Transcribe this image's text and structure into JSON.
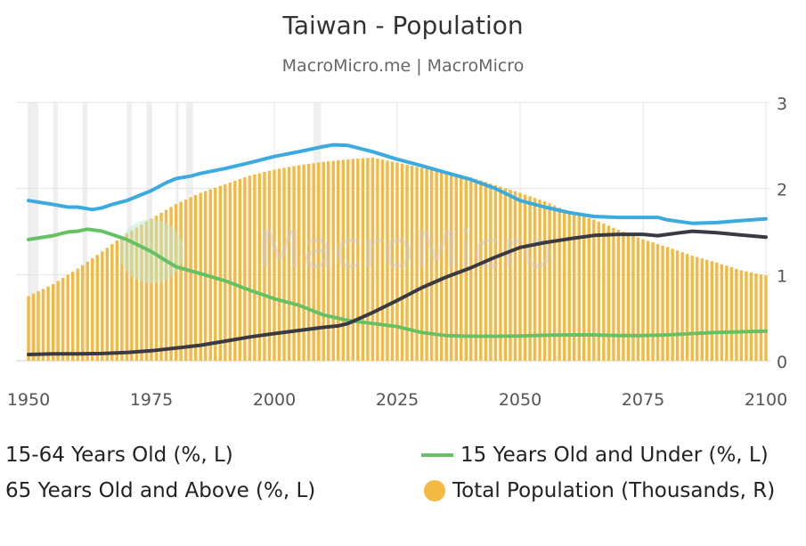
{
  "title": "Taiwan - Population",
  "subtitle": "MacroMicro.me | MacroMicro",
  "watermark": "MacroMicro",
  "chart_data": {
    "type": "bar+line",
    "title": "Taiwan - Population",
    "subtitle": "MacroMicro.me | MacroMicro",
    "x_ticks": [
      1950,
      1975,
      2000,
      2025,
      2050,
      2075,
      2100
    ],
    "x_range": [
      1950,
      2100
    ],
    "left_axis_range": [
      0,
      75
    ],
    "right_axis_range": [
      0,
      30000
    ],
    "right_tick_labels": [
      "0",
      "1",
      "2",
      "3"
    ],
    "grid": true,
    "legend_position": "bottom",
    "series": [
      {
        "name": "15-64 Years Old (%, L)",
        "type": "line",
        "color": "#3aaadf",
        "axis": "left",
        "points": [
          [
            1950,
            46.5
          ],
          [
            1955,
            45.4
          ],
          [
            1958,
            44.6
          ],
          [
            1960,
            44.6
          ],
          [
            1963,
            43.9
          ],
          [
            1965,
            44.4
          ],
          [
            1967,
            45.4
          ],
          [
            1970,
            46.5
          ],
          [
            1975,
            49.4
          ],
          [
            1978,
            51.7
          ],
          [
            1980,
            52.9
          ],
          [
            1983,
            53.6
          ],
          [
            1985,
            54.4
          ],
          [
            1990,
            55.8
          ],
          [
            1995,
            57.5
          ],
          [
            2000,
            59.3
          ],
          [
            2005,
            60.7
          ],
          [
            2010,
            62.2
          ],
          [
            2012,
            62.7
          ],
          [
            2015,
            62.5
          ],
          [
            2020,
            60.7
          ],
          [
            2025,
            58.5
          ],
          [
            2030,
            56.6
          ],
          [
            2035,
            54.6
          ],
          [
            2040,
            52.6
          ],
          [
            2045,
            50.0
          ],
          [
            2050,
            46.5
          ],
          [
            2055,
            44.6
          ],
          [
            2060,
            43.0
          ],
          [
            2065,
            41.9
          ],
          [
            2070,
            41.6
          ],
          [
            2075,
            41.6
          ],
          [
            2078,
            41.6
          ],
          [
            2080,
            40.9
          ],
          [
            2085,
            39.9
          ],
          [
            2090,
            40.1
          ],
          [
            2095,
            40.7
          ],
          [
            2100,
            41.2
          ]
        ]
      },
      {
        "name": "15 Years Old and Under (%, L)",
        "type": "line",
        "color": "#66c164",
        "axis": "left",
        "points": [
          [
            1950,
            35.2
          ],
          [
            1955,
            36.3
          ],
          [
            1958,
            37.4
          ],
          [
            1960,
            37.6
          ],
          [
            1962,
            38.2
          ],
          [
            1965,
            37.6
          ],
          [
            1970,
            35.2
          ],
          [
            1975,
            31.7
          ],
          [
            1978,
            29.0
          ],
          [
            1980,
            27.3
          ],
          [
            1985,
            25.3
          ],
          [
            1990,
            23.2
          ],
          [
            1995,
            20.5
          ],
          [
            2000,
            18.0
          ],
          [
            2005,
            16.1
          ],
          [
            2010,
            13.3
          ],
          [
            2015,
            11.7
          ],
          [
            2020,
            10.8
          ],
          [
            2025,
            9.9
          ],
          [
            2030,
            8.2
          ],
          [
            2035,
            7.3
          ],
          [
            2040,
            7.1
          ],
          [
            2045,
            7.1
          ],
          [
            2050,
            7.2
          ],
          [
            2055,
            7.4
          ],
          [
            2060,
            7.5
          ],
          [
            2065,
            7.5
          ],
          [
            2070,
            7.3
          ],
          [
            2075,
            7.3
          ],
          [
            2080,
            7.5
          ],
          [
            2085,
            7.9
          ],
          [
            2090,
            8.2
          ],
          [
            2095,
            8.4
          ],
          [
            2100,
            8.6
          ]
        ]
      },
      {
        "name": "65 Years Old and Above (%, L)",
        "type": "line",
        "color": "#3a3a44",
        "axis": "left",
        "points": [
          [
            1950,
            1.8
          ],
          [
            1955,
            2.0
          ],
          [
            1960,
            2.0
          ],
          [
            1965,
            2.1
          ],
          [
            1970,
            2.4
          ],
          [
            1975,
            2.9
          ],
          [
            1980,
            3.7
          ],
          [
            1985,
            4.5
          ],
          [
            1990,
            5.7
          ],
          [
            1995,
            6.9
          ],
          [
            2000,
            7.9
          ],
          [
            2005,
            8.8
          ],
          [
            2010,
            9.7
          ],
          [
            2013,
            10.1
          ],
          [
            2015,
            10.8
          ],
          [
            2020,
            14.0
          ],
          [
            2025,
            17.5
          ],
          [
            2030,
            21.2
          ],
          [
            2035,
            24.3
          ],
          [
            2040,
            27.0
          ],
          [
            2045,
            30.1
          ],
          [
            2050,
            32.9
          ],
          [
            2055,
            34.3
          ],
          [
            2060,
            35.4
          ],
          [
            2065,
            36.4
          ],
          [
            2070,
            36.7
          ],
          [
            2075,
            36.7
          ],
          [
            2078,
            36.3
          ],
          [
            2080,
            36.7
          ],
          [
            2085,
            37.6
          ],
          [
            2090,
            37.2
          ],
          [
            2095,
            36.5
          ],
          [
            2100,
            35.9
          ]
        ]
      },
      {
        "name": "Total Population (Thousands, R)",
        "type": "bar",
        "color": "#f4b942",
        "axis": "right",
        "points": [
          [
            1950,
            7500
          ],
          [
            1955,
            8900
          ],
          [
            1960,
            10700
          ],
          [
            1965,
            12700
          ],
          [
            1970,
            14800
          ],
          [
            1975,
            16500
          ],
          [
            1980,
            18200
          ],
          [
            1985,
            19500
          ],
          [
            1990,
            20500
          ],
          [
            1995,
            21500
          ],
          [
            2000,
            22200
          ],
          [
            2005,
            22700
          ],
          [
            2010,
            23100
          ],
          [
            2015,
            23400
          ],
          [
            2020,
            23600
          ],
          [
            2025,
            23000
          ],
          [
            2030,
            22400
          ],
          [
            2035,
            21900
          ],
          [
            2040,
            21300
          ],
          [
            2045,
            20400
          ],
          [
            2050,
            19500
          ],
          [
            2055,
            18500
          ],
          [
            2060,
            17300
          ],
          [
            2065,
            16400
          ],
          [
            2070,
            15200
          ],
          [
            2075,
            14100
          ],
          [
            2080,
            13200
          ],
          [
            2085,
            12200
          ],
          [
            2090,
            11400
          ],
          [
            2095,
            10500
          ],
          [
            2100,
            9900
          ]
        ]
      }
    ],
    "recession_bands": [
      [
        1950,
        1952
      ],
      [
        1955,
        1956
      ],
      [
        1961,
        1962
      ],
      [
        1970,
        1971
      ],
      [
        1974,
        1975
      ],
      [
        1980,
        1980.5
      ],
      [
        1982,
        1983.5
      ],
      [
        2008,
        2009.5
      ]
    ]
  }
}
